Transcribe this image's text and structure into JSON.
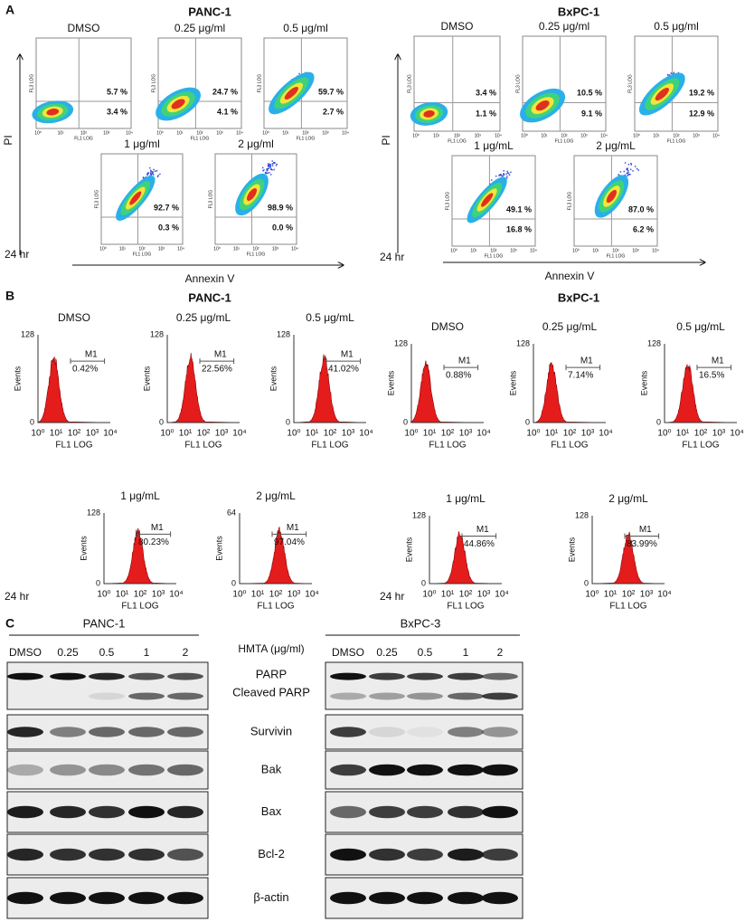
{
  "panel_a": {
    "label": "A",
    "plot_x_label": "FL1 LOG",
    "plot_y_label": "FL3 LOG",
    "plot_ticks": [
      "10⁰",
      "10¹",
      "10²",
      "10³",
      "10⁴"
    ],
    "groups": [
      {
        "title": "PANC-1",
        "y_label": "PI",
        "x_label": "Annexin V",
        "time": "24 hr",
        "plots": [
          {
            "condition": "DMSO",
            "upper": "5.7 %",
            "lower": "3.4 %"
          },
          {
            "condition": "0.25 μg/ml",
            "upper": "24.7 %",
            "lower": "4.1 %"
          },
          {
            "condition": "0.5 μg/ml",
            "upper": "59.7 %",
            "lower": "2.7 %"
          },
          {
            "condition": "1 μg/ml",
            "upper": "92.7 %",
            "lower": "0.3 %"
          },
          {
            "condition": "2 μg/ml",
            "upper": "98.9 %",
            "lower": "0.0 %"
          }
        ]
      },
      {
        "title": "BxPC-1",
        "y_label": "PI",
        "x_label": "Annexin V",
        "time": "24 hr",
        "plots": [
          {
            "condition": "DMSO",
            "upper": "3.4 %",
            "lower": "1.1 %"
          },
          {
            "condition": "0.25 μg/ml",
            "upper": "10.5 %",
            "lower": "9.1 %"
          },
          {
            "condition": "0.5 μg/ml",
            "upper": "19.2 %",
            "lower": "12.9 %"
          },
          {
            "condition": "1 μg/mL",
            "upper": "49.1 %",
            "lower": "16.8 %"
          },
          {
            "condition": "2 μg/mL",
            "upper": "87.0 %",
            "lower": "6.2 %"
          }
        ]
      }
    ]
  },
  "panel_b": {
    "label": "B",
    "y_label": "Events",
    "x_label": "FL1 LOG",
    "y_min": "0",
    "x_ticks": [
      "10⁰",
      "10¹",
      "10²",
      "10³",
      "10⁴"
    ],
    "gate": "M1",
    "groups": [
      {
        "title": "PANC-1",
        "time": "24 hr",
        "plots": [
          {
            "condition": "DMSO",
            "y_max": "128",
            "percent": "0.42%"
          },
          {
            "condition": "0.25 μg/mL",
            "y_max": "128",
            "percent": "22.56%"
          },
          {
            "condition": "0.5 μg/mL",
            "y_max": "128",
            "percent": "41.02%"
          },
          {
            "condition": "1 μg/mL",
            "y_max": "128",
            "percent": "80.23%"
          },
          {
            "condition": "2 μg/mL",
            "y_max": "64",
            "percent": "97.04%"
          }
        ]
      },
      {
        "title": "BxPC-1",
        "time": "24 hr",
        "plots": [
          {
            "condition": "DMSO",
            "y_max": "128",
            "percent": "0.88%"
          },
          {
            "condition": "0.25 μg/mL",
            "y_max": "128",
            "percent": "7.14%"
          },
          {
            "condition": "0.5 μg/mL",
            "y_max": "128",
            "percent": "16.5%"
          },
          {
            "condition": "1 μg/mL",
            "y_max": "128",
            "percent": "44.86%"
          },
          {
            "condition": "2 μg/mL",
            "y_max": "128",
            "percent": "83.99%"
          }
        ]
      }
    ]
  },
  "panel_c": {
    "label": "C",
    "treatment": "HMTA (μg/ml)",
    "groups": [
      {
        "title": "PANC-1",
        "lanes": [
          "DMSO",
          "0.25",
          "0.5",
          "1",
          "2"
        ]
      },
      {
        "title": "BxPC-3",
        "lanes": [
          "DMSO",
          "0.25",
          "0.5",
          "1",
          "2"
        ]
      }
    ],
    "blots": [
      {
        "proteins": [
          "PARP",
          "Cleaved PARP"
        ]
      },
      {
        "proteins": [
          "Survivin"
        ]
      },
      {
        "proteins": [
          "Bak"
        ]
      },
      {
        "proteins": [
          "Bax"
        ]
      },
      {
        "proteins": [
          "Bcl-2"
        ]
      },
      {
        "proteins": [
          "β-actin"
        ]
      }
    ]
  }
}
